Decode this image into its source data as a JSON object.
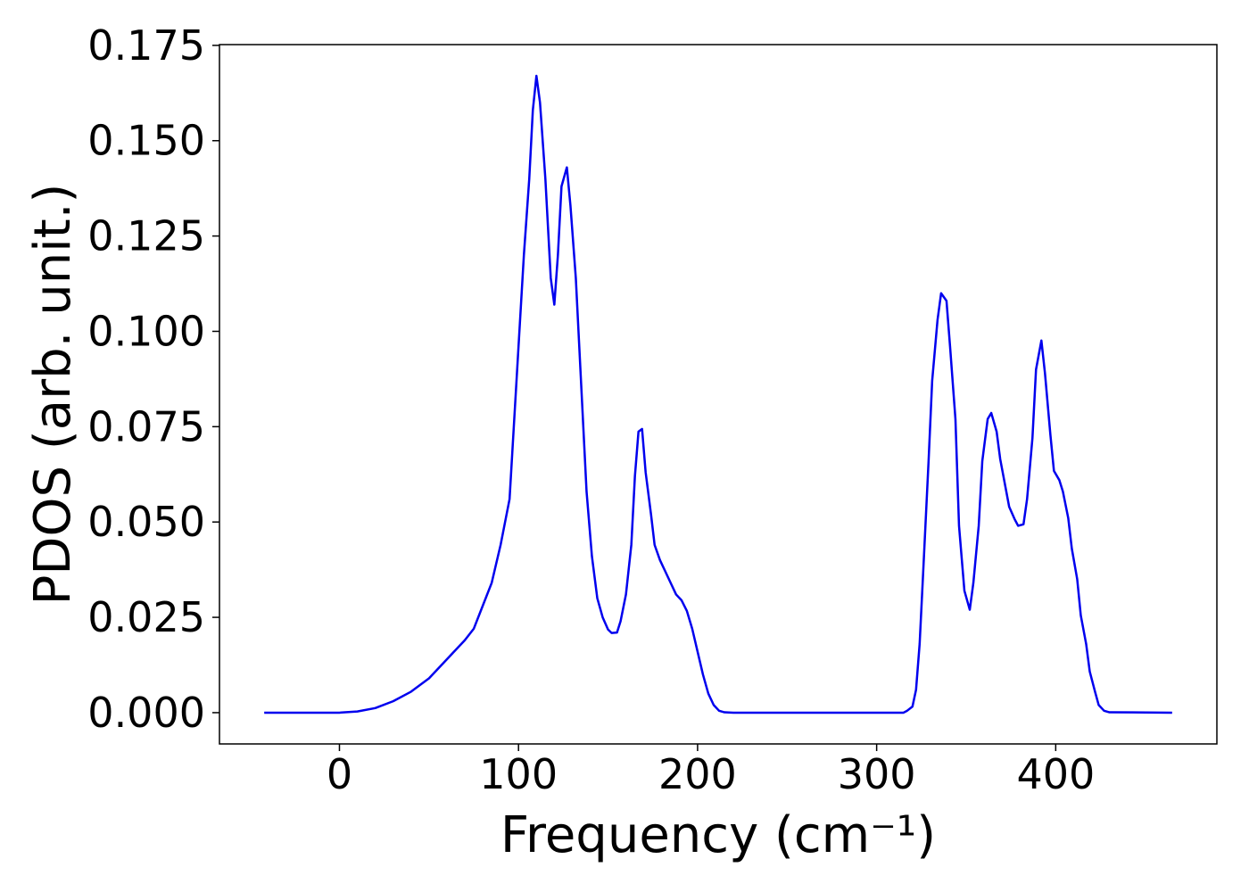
{
  "chart_data": {
    "type": "line",
    "xlabel": "Frequency (cm⁻¹)",
    "ylabel": "PDOS (arb. unit.)",
    "x": [
      -42,
      0,
      10,
      20,
      30,
      40,
      50,
      60,
      70,
      75,
      80,
      85,
      90,
      95,
      98,
      100,
      103,
      106,
      108,
      110,
      112,
      115,
      118,
      120,
      122,
      124,
      127,
      129,
      132,
      135,
      138,
      141,
      144,
      147,
      150,
      152,
      155,
      157,
      160,
      163,
      165,
      167,
      169,
      171,
      174,
      176,
      179,
      182,
      185,
      188,
      191,
      194,
      197,
      200,
      203,
      206,
      209,
      212,
      215,
      220,
      315,
      317,
      320,
      322,
      324,
      326,
      329,
      331,
      334,
      336,
      339,
      341,
      344,
      346,
      349,
      352,
      354,
      357,
      359,
      362,
      364,
      367,
      369,
      372,
      374,
      377,
      379,
      382,
      384,
      387,
      389,
      392,
      394,
      397,
      399,
      402,
      404,
      407,
      409,
      412,
      414,
      417,
      419,
      422,
      424,
      427,
      430,
      465
    ],
    "series": [
      {
        "name": "PDOS",
        "color": "#0000ee",
        "values": [
          0,
          0,
          0.0003,
          0.0012,
          0.003,
          0.0055,
          0.009,
          0.014,
          0.019,
          0.022,
          0.028,
          0.034,
          0.044,
          0.056,
          0.08,
          0.096,
          0.12,
          0.14,
          0.158,
          0.167,
          0.16,
          0.14,
          0.114,
          0.107,
          0.12,
          0.138,
          0.143,
          0.133,
          0.114,
          0.086,
          0.058,
          0.041,
          0.03,
          0.025,
          0.0218,
          0.0209,
          0.021,
          0.024,
          0.031,
          0.044,
          0.062,
          0.0737,
          0.0744,
          0.063,
          0.052,
          0.044,
          0.04,
          0.037,
          0.034,
          0.031,
          0.0295,
          0.0267,
          0.022,
          0.016,
          0.01,
          0.005,
          0.002,
          0.0005,
          0.0001,
          0,
          0,
          0.0005,
          0.0016,
          0.006,
          0.018,
          0.037,
          0.066,
          0.087,
          0.103,
          0.11,
          0.108,
          0.096,
          0.077,
          0.049,
          0.032,
          0.027,
          0.034,
          0.049,
          0.066,
          0.077,
          0.0786,
          0.0737,
          0.0665,
          0.059,
          0.054,
          0.0508,
          0.049,
          0.0494,
          0.056,
          0.072,
          0.09,
          0.0976,
          0.089,
          0.073,
          0.0634,
          0.061,
          0.058,
          0.051,
          0.043,
          0.035,
          0.0255,
          0.018,
          0.0108,
          0.0054,
          0.002,
          0.0005,
          0.0001,
          0
        ]
      }
    ],
    "xlim": [
      -67,
      490
    ],
    "ylim": [
      -0.0082,
      0.1752
    ],
    "xticks": [
      0,
      100,
      200,
      300,
      400
    ],
    "yticks": [
      {
        "value": 0,
        "label": "0.000"
      },
      {
        "value": 0.025,
        "label": "0.025"
      },
      {
        "value": 0.05,
        "label": "0.050"
      },
      {
        "value": 0.075,
        "label": "0.075"
      },
      {
        "value": 0.1,
        "label": "0.100"
      },
      {
        "value": 0.125,
        "label": "0.125"
      },
      {
        "value": 0.15,
        "label": "0.150"
      },
      {
        "value": 0.175,
        "label": "0.175"
      }
    ],
    "grid": false
  }
}
